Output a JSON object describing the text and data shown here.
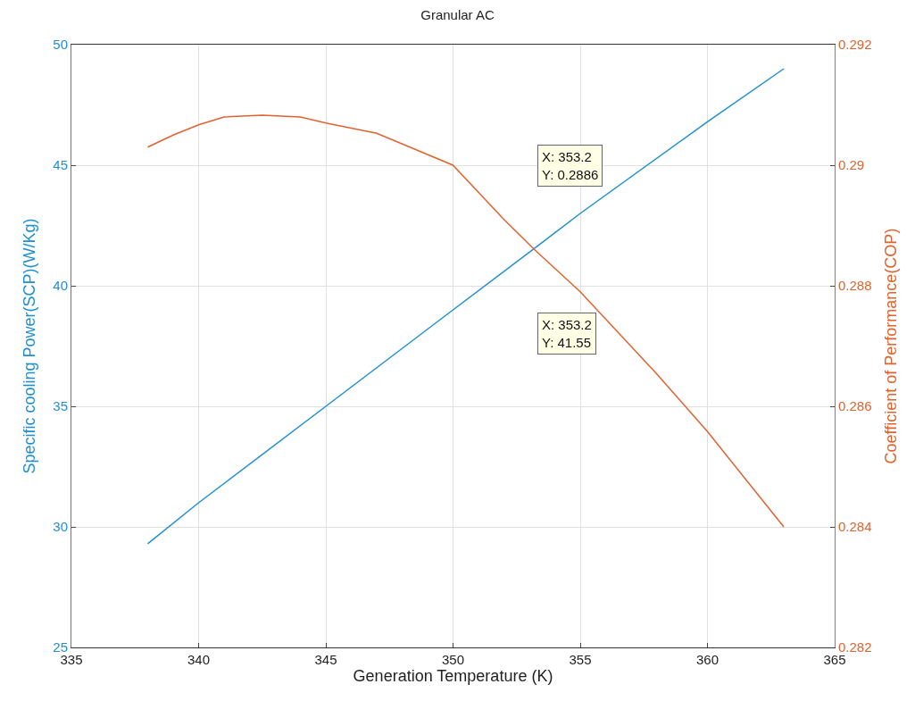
{
  "chart_data": {
    "type": "line",
    "title": "Granular AC",
    "xlabel": "Generation Temperature (K)",
    "ylabel": "Specific cooling Power(SCP)(W/Kg)",
    "y2label": "Coefficient of Performance(COP)",
    "series": [
      {
        "color": "#1f8fd0",
        "x": [
          338,
          340,
          345,
          350,
          353.2,
          355,
          360,
          363
        ],
        "values": [
          29.3,
          31.0,
          35.0,
          39.0,
          41.55,
          43.0,
          46.8,
          49.0
        ]
      },
      {
        "color": "#e0632f",
        "axis": "y2",
        "x": [
          338,
          339,
          340,
          341,
          342.5,
          344,
          345,
          347,
          350,
          352,
          353.2,
          355,
          358,
          360,
          363
        ],
        "values": [
          0.2903,
          0.2905,
          0.29067,
          0.2908,
          0.29083,
          0.2908,
          0.2907,
          0.29053,
          0.29,
          0.2891,
          0.2886,
          0.2879,
          0.28654,
          0.28558,
          0.284
        ]
      }
    ],
    "xlim": [
      335,
      365
    ],
    "xticks": [
      335,
      340,
      345,
      350,
      355,
      360,
      365
    ],
    "ylim": [
      25,
      50
    ],
    "yticks": [
      25,
      30,
      35,
      40,
      45,
      50
    ],
    "y2lim": [
      0.282,
      0.292
    ],
    "y2ticks": [
      0.282,
      0.284,
      0.286,
      0.288,
      0.29,
      0.292
    ],
    "annotations": [
      "X: 353.2\nY: 0.2886",
      "X: 353.2\nY: 41.55"
    ],
    "grid": true,
    "marker": "none",
    "line_style": "solid"
  }
}
